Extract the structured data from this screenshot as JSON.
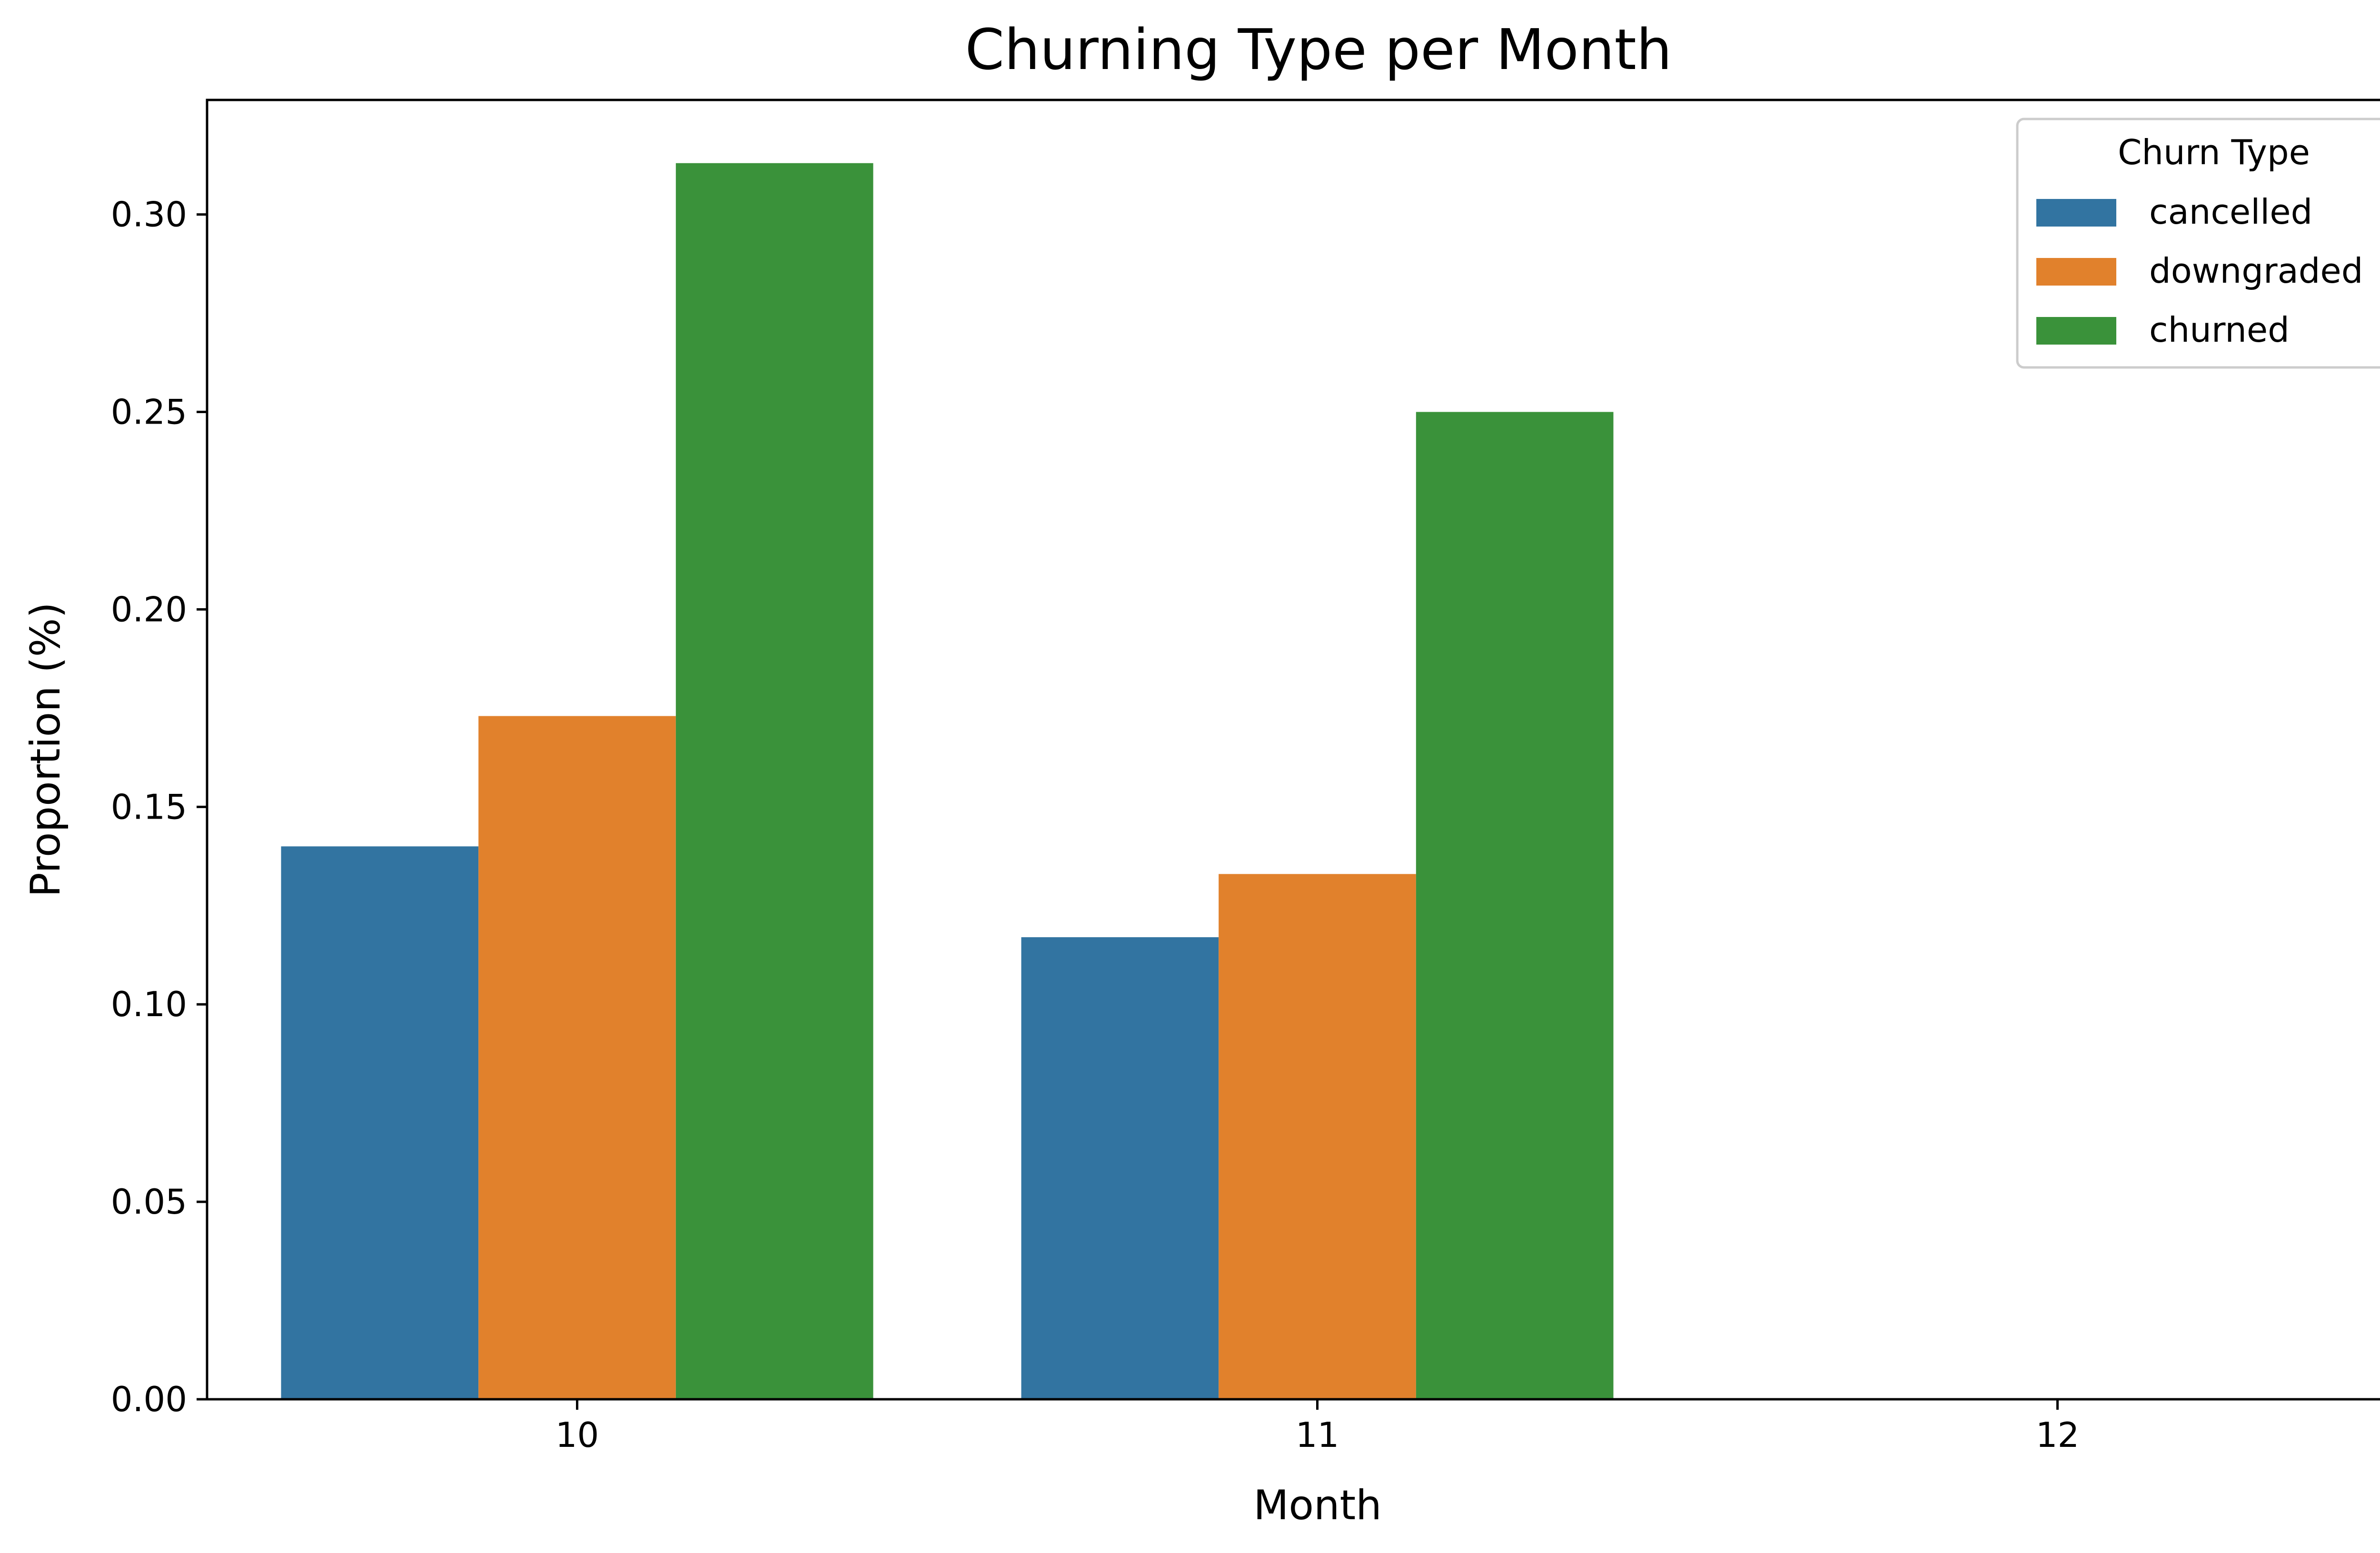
{
  "chart_data": {
    "type": "bar",
    "title": "Churning Type per Month",
    "xlabel": "Month",
    "ylabel": "Proportion (%)",
    "categories": [
      "10",
      "11",
      "12"
    ],
    "series": [
      {
        "name": "cancelled",
        "color": "#3274a1",
        "values": [
          0.14,
          0.117,
          0
        ]
      },
      {
        "name": "downgraded",
        "color": "#e1812c",
        "values": [
          0.173,
          0.133,
          0
        ]
      },
      {
        "name": "churned",
        "color": "#3a923a",
        "values": [
          0.313,
          0.25,
          0
        ]
      }
    ],
    "ylim": [
      0,
      0.329
    ],
    "yticks": [
      "0.00",
      "0.05",
      "0.10",
      "0.15",
      "0.20",
      "0.25",
      "0.30"
    ],
    "legend": {
      "title": "Churn Type",
      "position": "top-right"
    },
    "grid": false
  }
}
